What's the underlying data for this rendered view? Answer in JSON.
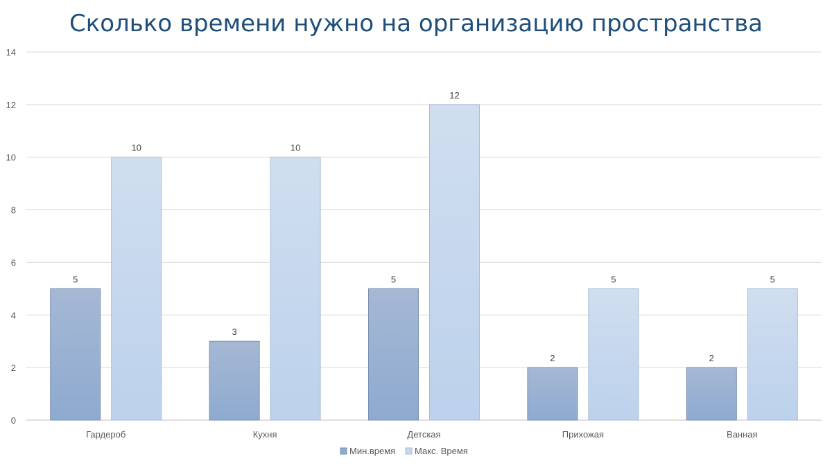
{
  "chart_data": {
    "type": "bar",
    "title": "Сколько времени нужно на организацию пространства",
    "categories": [
      "Гардероб",
      "Кухня",
      "Детская",
      "Прихожая",
      "Ванная"
    ],
    "series": [
      {
        "name": "Мин.время",
        "values": [
          5,
          3,
          5,
          2,
          2
        ],
        "color": "#8eaad0"
      },
      {
        "name": "Макс. Время",
        "values": [
          10,
          10,
          12,
          5,
          5
        ],
        "color": "#c6d7ee"
      }
    ],
    "ylim": [
      0,
      14
    ],
    "yticks": [
      0,
      2,
      4,
      6,
      8,
      10,
      12,
      14
    ],
    "xlabel": "",
    "ylabel": "",
    "grid": true,
    "legend": "bottom",
    "data_labels": true
  }
}
